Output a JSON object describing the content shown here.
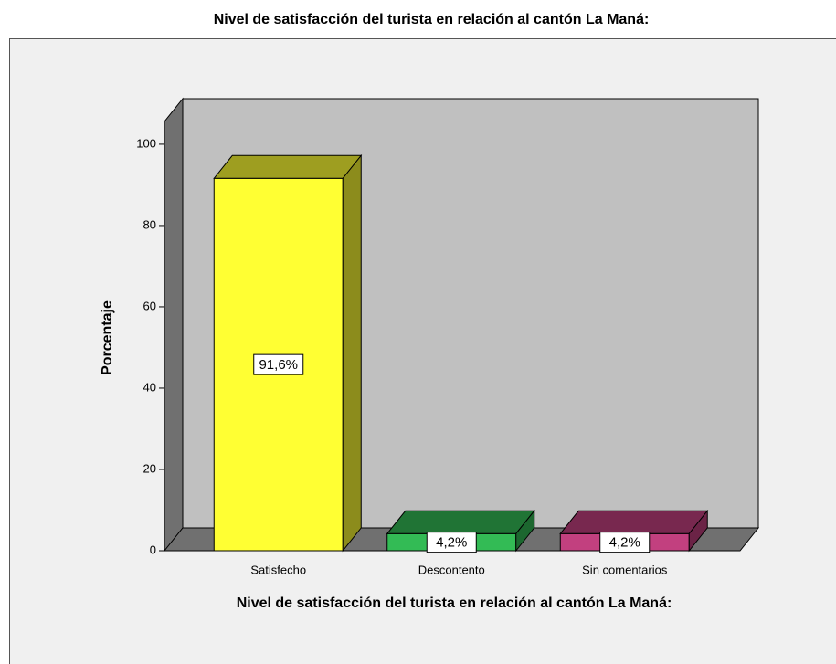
{
  "chart_data": {
    "type": "bar3d",
    "title": "Nivel de satisfacción del turista en relación al cantón La Maná:",
    "x_label": "Nivel de satisfacción del turista en relación al cantón La Maná:",
    "y_label": "Porcentaje",
    "categories": [
      "Satisfecho",
      "Descontento",
      "Sin comentarios"
    ],
    "values": [
      91.6,
      4.2,
      4.2
    ],
    "value_labels": [
      "91,6%",
      "4,2%",
      "4,2%"
    ],
    "colors": [
      "#ffff33",
      "#33bb55",
      "#c2407f"
    ],
    "ylim": [
      0,
      105.6
    ],
    "yticks": [
      0,
      20,
      40,
      60,
      80,
      100
    ]
  }
}
